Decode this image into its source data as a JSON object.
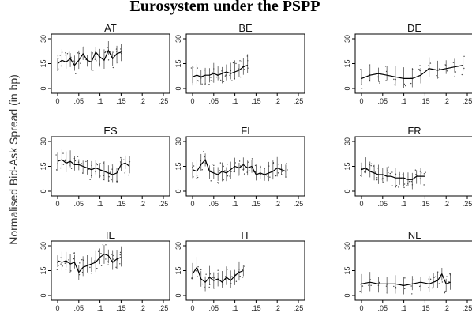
{
  "figure_title": "Eurosystem under the PSPP",
  "ylabel": "Normalised Bid-Ask Spread (in bp)",
  "x_ticks": [
    "0",
    ".05",
    ".1",
    ".15",
    ".2",
    ".25"
  ],
  "y_ticks": [
    "0",
    "15",
    "30"
  ],
  "chart_data": [
    {
      "type": "line",
      "title": "AT",
      "xlim": [
        0,
        0.25
      ],
      "ylim": [
        0,
        30
      ],
      "x": [
        0,
        0.01,
        0.02,
        0.03,
        0.04,
        0.05,
        0.06,
        0.07,
        0.08,
        0.09,
        0.1,
        0.11,
        0.12,
        0.13,
        0.14,
        0.15
      ],
      "y": [
        15,
        17,
        16,
        18,
        14,
        17,
        21,
        17,
        16,
        22,
        19,
        17,
        23,
        18,
        21,
        22
      ]
    },
    {
      "type": "line",
      "title": "BE",
      "xlim": [
        0,
        0.25
      ],
      "ylim": [
        0,
        30
      ],
      "x": [
        0,
        0.01,
        0.02,
        0.03,
        0.04,
        0.05,
        0.06,
        0.07,
        0.08,
        0.09,
        0.1,
        0.11,
        0.12,
        0.13
      ],
      "y": [
        7,
        8,
        7,
        8,
        8,
        9,
        8,
        9,
        10,
        9,
        10,
        11,
        13,
        14
      ]
    },
    {
      "type": "line",
      "title": "DE",
      "xlim": [
        0,
        0.25
      ],
      "ylim": [
        0,
        30
      ],
      "x": [
        0,
        0.02,
        0.04,
        0.06,
        0.08,
        0.1,
        0.12,
        0.14,
        0.16,
        0.18,
        0.2,
        0.22,
        0.24
      ],
      "y": [
        6,
        8,
        9,
        8,
        7,
        6,
        6,
        8,
        12,
        11,
        12,
        13,
        14
      ]
    },
    {
      "type": "line",
      "title": "ES",
      "xlim": [
        0,
        0.25
      ],
      "ylim": [
        0,
        30
      ],
      "x": [
        0,
        0.01,
        0.02,
        0.03,
        0.04,
        0.05,
        0.06,
        0.07,
        0.08,
        0.09,
        0.1,
        0.11,
        0.12,
        0.13,
        0.14,
        0.15,
        0.16,
        0.17
      ],
      "y": [
        18,
        19,
        17,
        18,
        16,
        16,
        15,
        14,
        13,
        14,
        13,
        12,
        11,
        10,
        11,
        16,
        17,
        15
      ]
    },
    {
      "type": "line",
      "title": "FI",
      "xlim": [
        0,
        0.25
      ],
      "ylim": [
        0,
        30
      ],
      "x": [
        0,
        0.01,
        0.02,
        0.03,
        0.04,
        0.05,
        0.06,
        0.07,
        0.08,
        0.09,
        0.1,
        0.11,
        0.12,
        0.13,
        0.14,
        0.15,
        0.16,
        0.17,
        0.18,
        0.19,
        0.2,
        0.21,
        0.22
      ],
      "y": [
        13,
        12,
        16,
        19,
        12,
        11,
        10,
        12,
        11,
        13,
        15,
        14,
        16,
        14,
        15,
        10,
        11,
        10,
        11,
        12,
        14,
        13,
        12
      ]
    },
    {
      "type": "line",
      "title": "FR",
      "xlim": [
        0,
        0.25
      ],
      "ylim": [
        0,
        30
      ],
      "x": [
        0,
        0.01,
        0.02,
        0.03,
        0.04,
        0.05,
        0.06,
        0.07,
        0.08,
        0.09,
        0.1,
        0.11,
        0.12,
        0.13,
        0.14,
        0.15
      ],
      "y": [
        13,
        14,
        12,
        11,
        10,
        10,
        9,
        9,
        8,
        8,
        8,
        7,
        7,
        9,
        9,
        9
      ]
    },
    {
      "type": "line",
      "title": "IE",
      "xlim": [
        0,
        0.25
      ],
      "ylim": [
        0,
        30
      ],
      "x": [
        0,
        0.01,
        0.02,
        0.03,
        0.04,
        0.05,
        0.06,
        0.07,
        0.08,
        0.09,
        0.1,
        0.11,
        0.12,
        0.13,
        0.14,
        0.15
      ],
      "y": [
        21,
        20,
        21,
        19,
        20,
        14,
        17,
        18,
        19,
        20,
        23,
        25,
        24,
        20,
        22,
        23
      ]
    },
    {
      "type": "line",
      "title": "IT",
      "xlim": [
        0,
        0.25
      ],
      "ylim": [
        0,
        30
      ],
      "x": [
        0,
        0.01,
        0.02,
        0.03,
        0.04,
        0.05,
        0.06,
        0.07,
        0.08,
        0.09,
        0.1,
        0.11,
        0.12
      ],
      "y": [
        13,
        17,
        10,
        8,
        11,
        9,
        10,
        8,
        11,
        9,
        12,
        14,
        15
      ]
    },
    {
      "type": "line",
      "title": "NL",
      "xlim": [
        0,
        0.25
      ],
      "ylim": [
        0,
        30
      ],
      "x": [
        0,
        0.02,
        0.04,
        0.06,
        0.08,
        0.1,
        0.12,
        0.14,
        0.16,
        0.17,
        0.18,
        0.19,
        0.2,
        0.21
      ],
      "y": [
        7,
        8,
        7,
        7,
        7,
        6,
        7,
        8,
        7,
        8,
        9,
        13,
        7,
        8
      ]
    }
  ]
}
